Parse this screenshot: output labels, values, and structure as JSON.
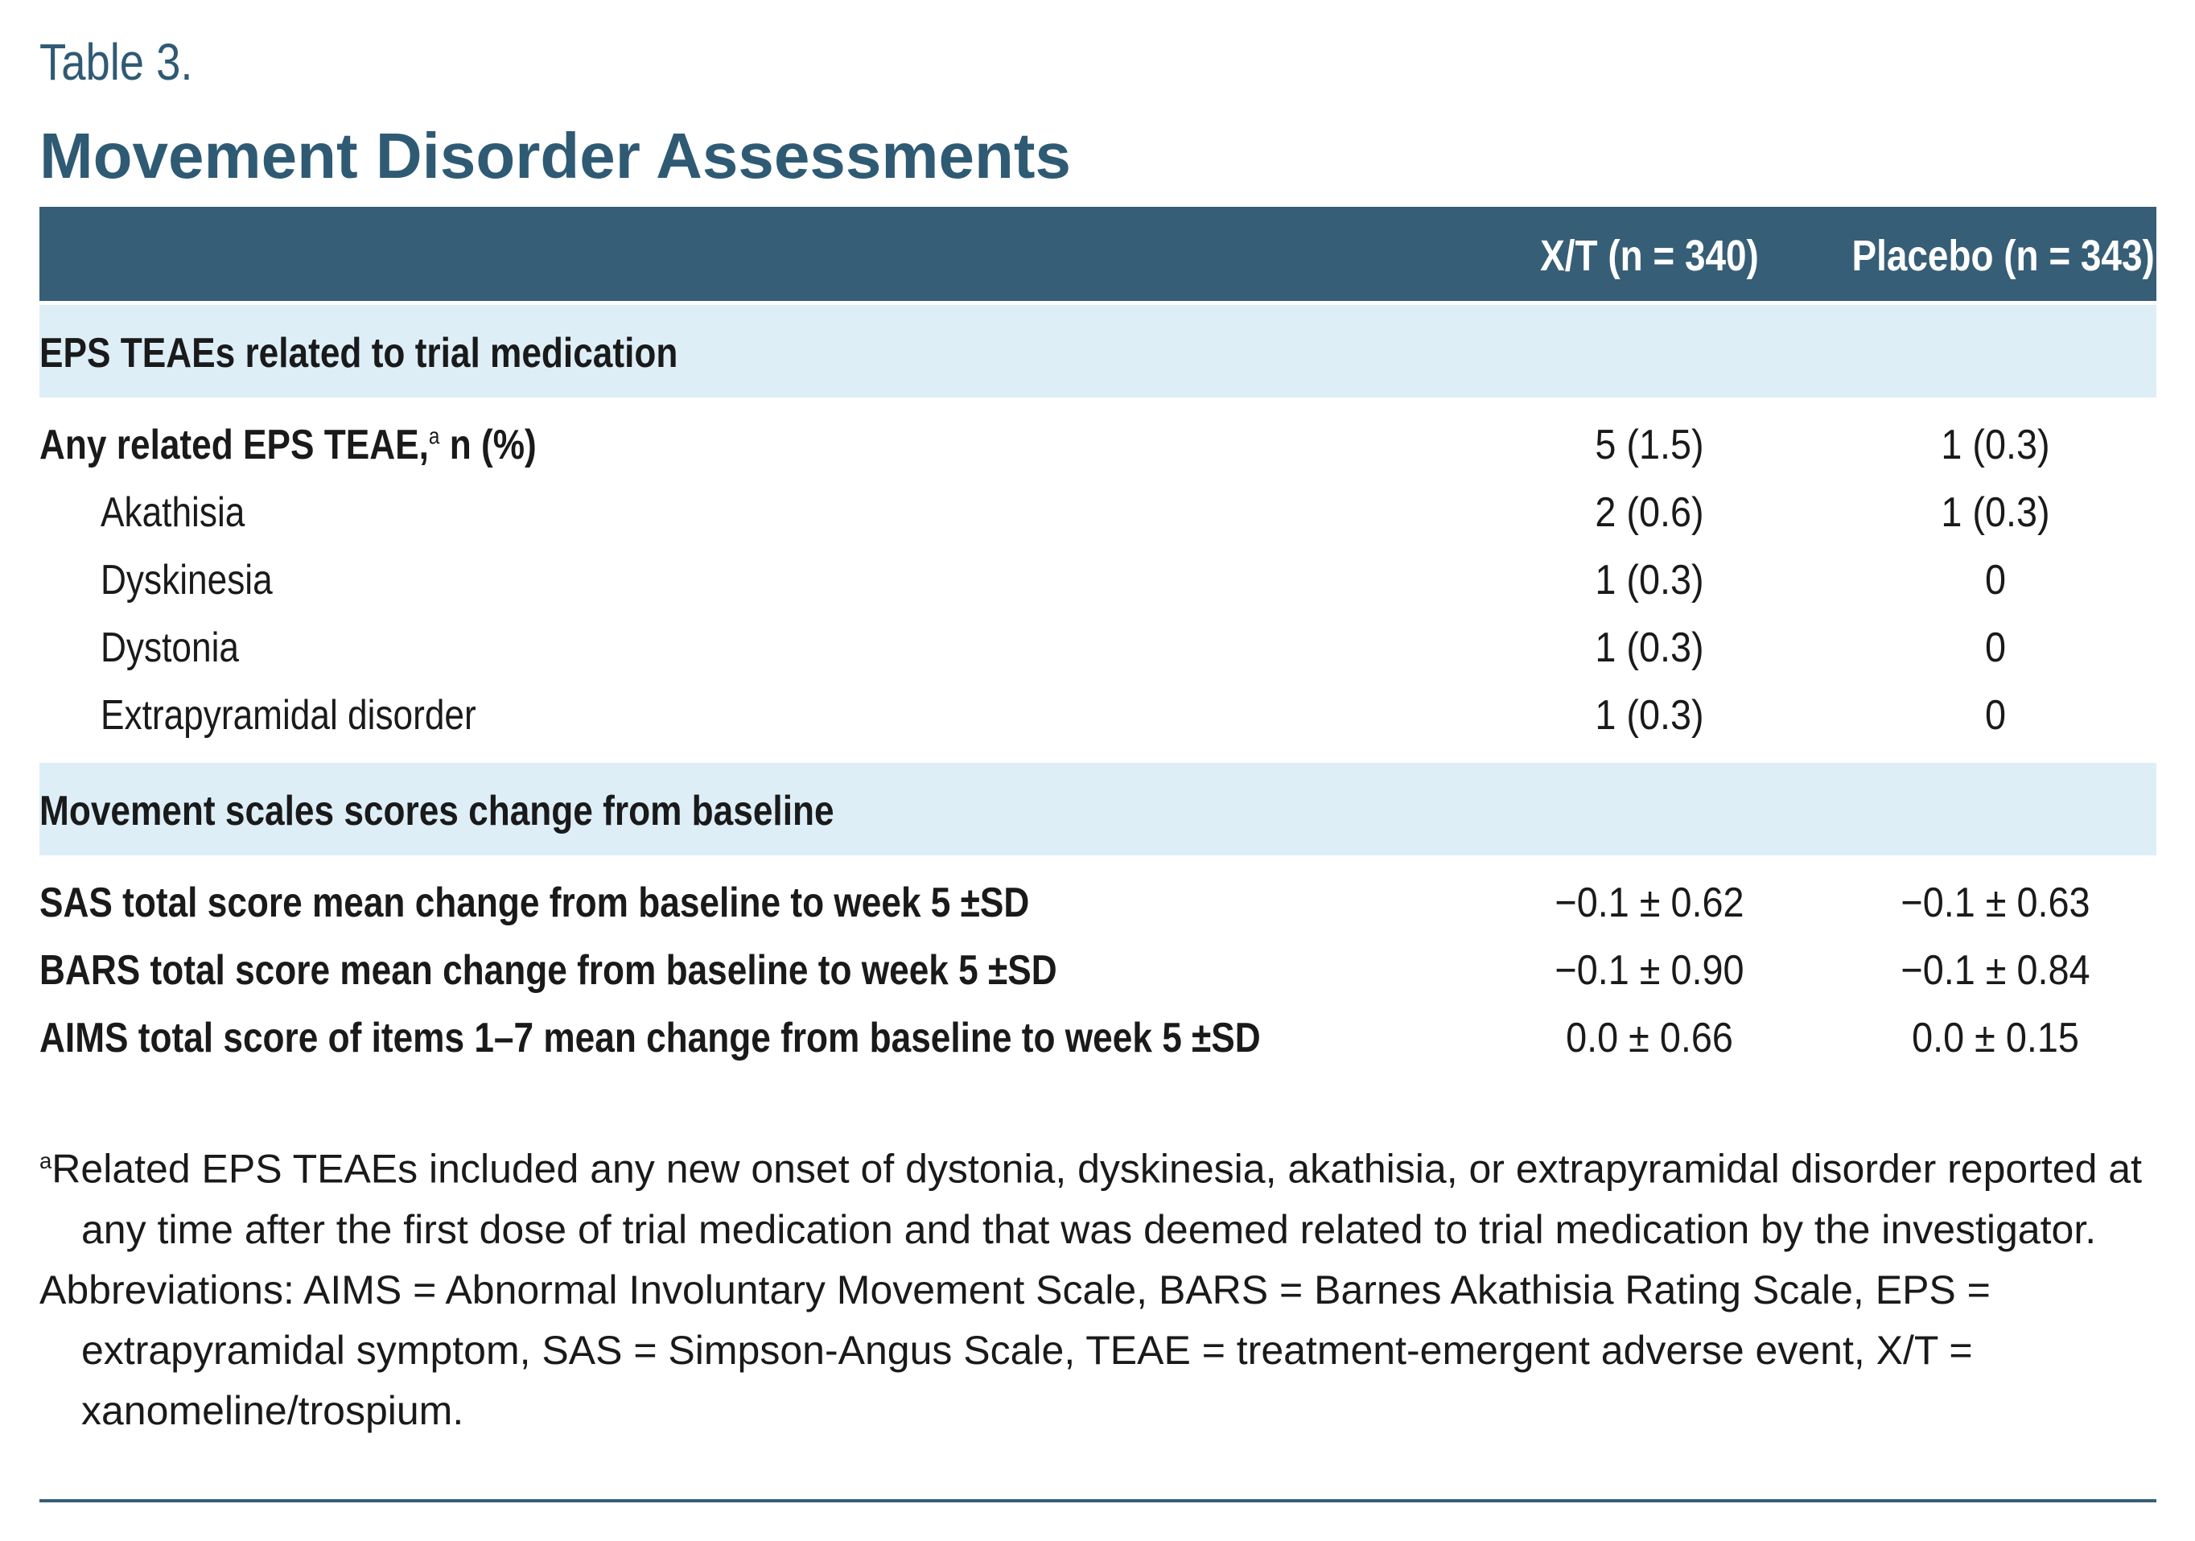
{
  "header": {
    "label": "Table 3.",
    "title": "Movement Disorder Assessments"
  },
  "table": {
    "columns": [
      "X/T (n = 340)",
      "Placebo (n = 343)"
    ],
    "sections": [
      {
        "title": "EPS TEAEs related to trial medication",
        "rows": [
          {
            "label": "Any related EPS TEAE,",
            "superscript": "a",
            "label_suffix": " n (%)",
            "values": [
              "5 (1.5)",
              "1 (0.3)"
            ]
          },
          {
            "label": "Akathisia",
            "values": [
              "2 (0.6)",
              "1 (0.3)"
            ]
          },
          {
            "label": "Dyskinesia",
            "values": [
              "1 (0.3)",
              "0"
            ]
          },
          {
            "label": "Dystonia",
            "values": [
              "1 (0.3)",
              "0"
            ]
          },
          {
            "label": "Extrapyramidal disorder",
            "values": [
              "1 (0.3)",
              "0"
            ]
          }
        ]
      },
      {
        "title": "Movement scales scores change from baseline",
        "rows": [
          {
            "label": "SAS total score mean change from baseline to week 5 ±SD",
            "values": [
              "−0.1 ± 0.62",
              "−0.1 ± 0.63"
            ]
          },
          {
            "label": "BARS total score mean change from baseline to week 5 ±SD",
            "values": [
              "−0.1 ± 0.90",
              "−0.1 ± 0.84"
            ]
          },
          {
            "label": "AIMS total score of items 1–7 mean change from baseline to week 5 ±SD",
            "values": [
              "0.0 ± 0.66",
              "0.0 ± 0.15"
            ]
          }
        ]
      }
    ]
  },
  "footnotes": [
    {
      "marker": "a",
      "text": "Related EPS TEAEs included any new onset of dystonia, dyskinesia, akathisia, or extrapyramidal disorder reported at any time after the first dose of trial medication and that was deemed related to trial medication by the investigator."
    },
    {
      "text": "Abbreviations: AIMS = Abnormal Involuntary Movement Scale, BARS = Barnes Akathisia Rating Scale, EPS = extrapyramidal symptom, SAS = Simpson-Angus Scale, TEAE = treatment-emergent adverse event, X/T = xanomeline/trospium."
    }
  ]
}
